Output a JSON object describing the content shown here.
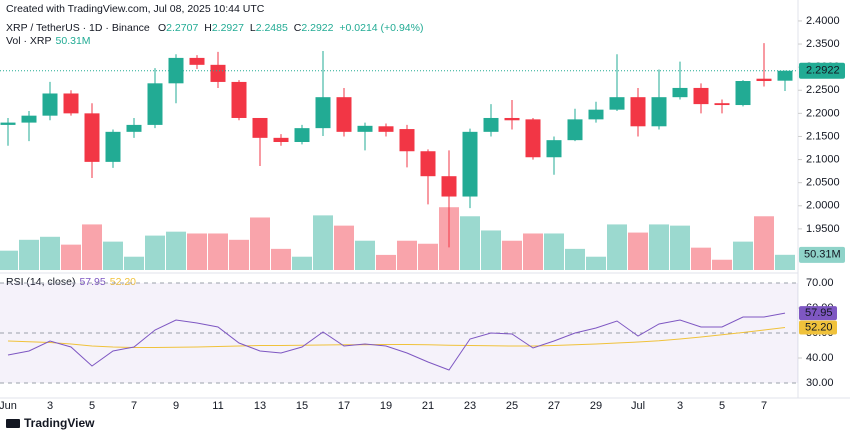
{
  "header": {
    "credit": "Created with TradingView.com, Jul 08, 2025 10:44 UTC",
    "symbol": "XRP / TetherUS · 1D · Binance",
    "o": "O",
    "h": "H",
    "l": "L",
    "c": "C",
    "change": "+0.0214 (+0.94%)",
    "volume_title": "Vol · XRP",
    "rsi_title": "RSI (14, close)",
    "rsi_value": "57.95",
    "rsi_ma_value": "52.20"
  },
  "footer": {
    "brand": "TradingView"
  },
  "chart_data": {
    "type": "candlestick",
    "categories": [
      "Jun",
      null,
      "3",
      null,
      "5",
      null,
      "7",
      null,
      "9",
      null,
      "11",
      null,
      "13",
      null,
      "15",
      null,
      "17",
      null,
      "19",
      null,
      "21",
      null,
      "23",
      null,
      "25",
      null,
      "27",
      null,
      "29",
      null,
      "Jul",
      null,
      "3",
      null,
      "5",
      null,
      "7",
      null
    ],
    "open": [
      2.175,
      2.18,
      2.195,
      2.243,
      2.2,
      2.095,
      2.16,
      2.175,
      2.265,
      2.32,
      2.305,
      2.268,
      2.19,
      2.147,
      2.138,
      2.168,
      2.235,
      2.16,
      2.172,
      2.166,
      2.118,
      2.064,
      2.02,
      2.16,
      2.19,
      2.187,
      2.105,
      2.142,
      2.187,
      2.208,
      2.235,
      2.172,
      2.235,
      2.255,
      2.222,
      2.218,
      2.275,
      2.2707
    ],
    "high": [
      2.19,
      2.205,
      2.268,
      2.25,
      2.222,
      2.165,
      2.19,
      2.298,
      2.328,
      2.326,
      2.333,
      2.272,
      2.19,
      2.155,
      2.175,
      2.335,
      2.255,
      2.18,
      2.178,
      2.175,
      2.122,
      2.12,
      2.167,
      2.22,
      2.229,
      2.19,
      2.15,
      2.21,
      2.225,
      2.328,
      2.255,
      2.295,
      2.312,
      2.265,
      2.23,
      2.272,
      2.352,
      2.2927
    ],
    "low": [
      2.13,
      2.14,
      2.185,
      2.195,
      2.06,
      2.082,
      2.147,
      2.168,
      2.222,
      2.296,
      2.255,
      2.185,
      2.086,
      2.13,
      2.133,
      2.151,
      2.15,
      2.12,
      2.15,
      2.083,
      2.003,
      1.91,
      1.995,
      2.15,
      2.165,
      2.1,
      2.067,
      2.14,
      2.18,
      2.205,
      2.15,
      2.165,
      2.23,
      2.2,
      2.2,
      2.215,
      2.258,
      2.2485
    ],
    "close": [
      2.18,
      2.195,
      2.243,
      2.2,
      2.095,
      2.16,
      2.175,
      2.265,
      2.32,
      2.305,
      2.268,
      2.19,
      2.147,
      2.138,
      2.168,
      2.235,
      2.16,
      2.173,
      2.16,
      2.118,
      2.064,
      2.02,
      2.16,
      2.19,
      2.185,
      2.105,
      2.142,
      2.187,
      2.208,
      2.235,
      2.172,
      2.235,
      2.255,
      2.22,
      2.218,
      2.27,
      2.27,
      2.2922
    ],
    "up_color": "#22ab94",
    "down_color": "#f23645",
    "ylim": [
      1.861,
      2.428
    ],
    "yticks": [
      {
        "value": 1.95,
        "label": "1.9500"
      },
      {
        "value": 2.0,
        "label": "2.0000"
      },
      {
        "value": 2.05,
        "label": "2.0500"
      },
      {
        "value": 2.1,
        "label": "2.1000"
      },
      {
        "value": 2.15,
        "label": "2.1500"
      },
      {
        "value": 2.2,
        "label": "2.2000"
      },
      {
        "value": 2.25,
        "label": "2.2500"
      },
      {
        "value": 2.3,
        "label": "2.3000"
      },
      {
        "value": 2.35,
        "label": "2.3500"
      },
      {
        "value": 2.4,
        "label": "2.4000"
      }
    ],
    "grid": false,
    "volume": [
      64,
      100,
      110,
      84,
      151,
      94,
      44,
      114,
      127,
      121,
      121,
      100,
      174,
      70,
      44,
      181,
      147,
      97,
      50,
      97,
      87,
      208,
      178,
      131,
      97,
      121,
      121,
      70,
      44,
      151,
      124,
      151,
      147,
      74,
      34,
      94,
      178,
      50.31
    ],
    "volume_labels": [
      null,
      null,
      null,
      null,
      null,
      null,
      null,
      null,
      null,
      null,
      null,
      null,
      null,
      null,
      null,
      null,
      null,
      null,
      null,
      null,
      null,
      null,
      null,
      null,
      null,
      null,
      null,
      null,
      null,
      null,
      null,
      null,
      null,
      null,
      null,
      null,
      null,
      "50.31M"
    ],
    "volume_ylim": [
      0,
      868
    ],
    "rsi": [
      41.2,
      42.8,
      46.8,
      44.4,
      36.8,
      42.8,
      44.4,
      51.2,
      55.2,
      54,
      52.4,
      46,
      42.8,
      42,
      44.4,
      50.4,
      44.8,
      45.6,
      44.8,
      42,
      38.4,
      35.2,
      47.6,
      50,
      49.6,
      44,
      46.8,
      50,
      52,
      54.8,
      48.8,
      53.6,
      55.2,
      52.4,
      52.4,
      56.4,
      56.4,
      57.95
    ],
    "rsi_ma": [
      46.8,
      46.5,
      46.2,
      45.6,
      44.8,
      44.4,
      44.2,
      44.2,
      44.3,
      44.4,
      44.6,
      44.8,
      45,
      45,
      45.1,
      45.2,
      45.3,
      45.3,
      45.4,
      45.4,
      45.3,
      45.1,
      45,
      44.9,
      44.8,
      44.8,
      45,
      45.3,
      45.6,
      46,
      46.4,
      46.9,
      47.6,
      48.4,
      49.3,
      50.2,
      51.2,
      52.2
    ],
    "rsi_color": "#7e57c2",
    "rsi_ma_color": "#f0c23b",
    "rsi_ylim": [
      25.2,
      73.2
    ],
    "rsi_yticks": [
      {
        "value": 30,
        "label": "30.00"
      },
      {
        "value": 40,
        "label": "40.00"
      },
      {
        "value": 50,
        "label": "50.00"
      },
      {
        "value": 60,
        "label": "60.00"
      },
      {
        "value": 70,
        "label": "70.00"
      }
    ]
  }
}
